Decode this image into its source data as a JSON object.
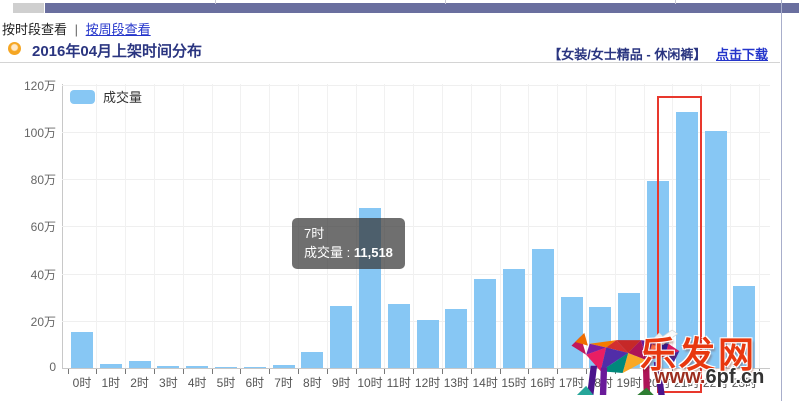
{
  "nav": {
    "current_view": "按时段查看",
    "separator": "|",
    "weekly_view_link": "按周段查看"
  },
  "header": {
    "title": "2016年04月上架时间分布",
    "category": "【女装/女士精品 - 休闲裤】",
    "download_link": "点击下载"
  },
  "legend": {
    "label": "成交量"
  },
  "tooltip": {
    "hour": "7时",
    "metric": "成交量",
    "separator": " : ",
    "value": "11,518"
  },
  "watermark": {
    "bull_icon": "colorful-lowpoly-bull",
    "site_name": "乐发网",
    "site_url_red": "www.",
    "site_url_dark": "6pf.cn"
  },
  "colors": {
    "bar": "#87c7f4",
    "highlight_box": "#e8382d",
    "link_blue": "#2435cb",
    "title_navy": "#2a3580",
    "topbar_purple": "#6a6f9f"
  },
  "chart_data": {
    "type": "bar",
    "title": "2016年04月上架时间分布",
    "unit": "万",
    "categories": [
      "0时",
      "1时",
      "2时",
      "3时",
      "4时",
      "5时",
      "6时",
      "7时",
      "8时",
      "9时",
      "10时",
      "11时",
      "12时",
      "13时",
      "14时",
      "15时",
      "16时",
      "17时",
      "18时",
      "19时",
      "20时",
      "21时",
      "22时",
      "23时"
    ],
    "series": [
      {
        "name": "成交量",
        "values": [
          15.3,
          1.7,
          2.8,
          0.9,
          0.9,
          0.5,
          0.5,
          1.15,
          6.6,
          26.2,
          67.9,
          26.9,
          20.5,
          24.8,
          37.6,
          41.9,
          50.4,
          29.9,
          25.9,
          31.8,
          79.0,
          108.2,
          100.3,
          34.6
        ]
      }
    ],
    "xlabel": "",
    "ylabel": "",
    "ylim": [
      0,
      120
    ],
    "yticks": [
      "0",
      "20万",
      "40万",
      "60万",
      "80万",
      "100万",
      "120万"
    ],
    "grid": true,
    "legend_position": "top-left",
    "highlighted_category": "21时",
    "tooltip_point": {
      "category": "7时",
      "value": 1.1518,
      "value_label": "11,518"
    }
  }
}
